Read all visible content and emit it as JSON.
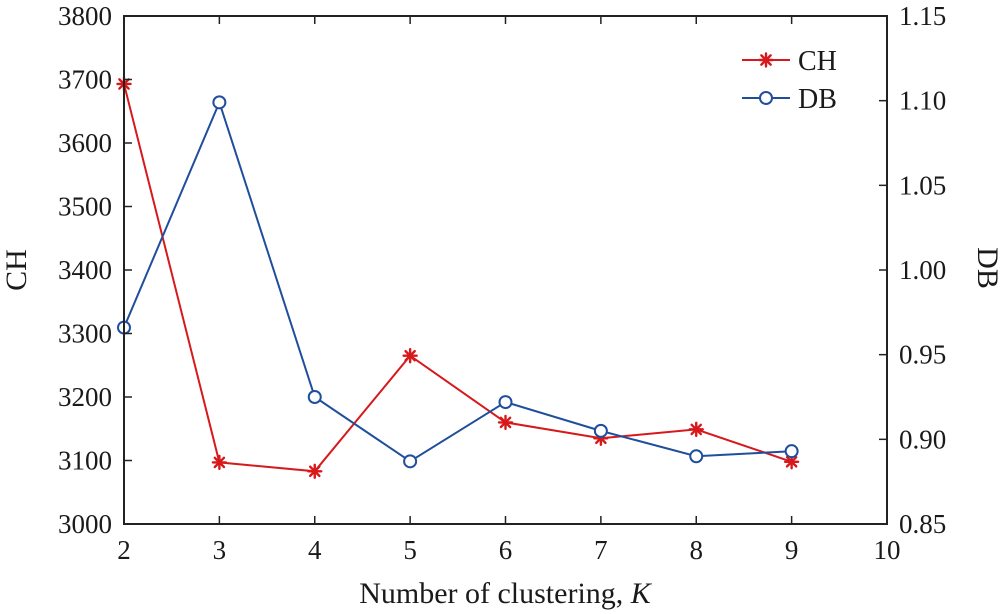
{
  "chart_data": {
    "type": "line",
    "x": [
      2,
      3,
      4,
      5,
      6,
      7,
      8,
      9
    ],
    "xlabel": "Number of clustering, ",
    "xlabel_italic": "K",
    "xlim": [
      2,
      10
    ],
    "xticks": [
      "2",
      "3",
      "4",
      "5",
      "6",
      "7",
      "8",
      "9",
      "10"
    ],
    "ylabel_left": "CH",
    "ylim_left": [
      3000,
      3800
    ],
    "yticks_left": [
      "3000",
      "3100",
      "3200",
      "3300",
      "3400",
      "3500",
      "3600",
      "3700",
      "3800"
    ],
    "ylabel_right": "DB",
    "ylim_right": [
      0.85,
      1.15
    ],
    "yticks_right": [
      "0.85",
      "0.90",
      "0.95",
      "1.00",
      "1.05",
      "1.10",
      "1.15"
    ],
    "grid": false,
    "legend_position": "top-right",
    "series": [
      {
        "name": "CH",
        "axis": "left",
        "marker": "asterisk",
        "color": "#d7191c",
        "values": [
          3693,
          3097,
          3083,
          3265,
          3160,
          3135,
          3149,
          3098
        ]
      },
      {
        "name": "DB",
        "axis": "right",
        "marker": "circle",
        "color": "#1f4e9c",
        "values": [
          0.966,
          1.099,
          0.925,
          0.887,
          0.922,
          0.905,
          0.89,
          0.893
        ]
      }
    ]
  }
}
